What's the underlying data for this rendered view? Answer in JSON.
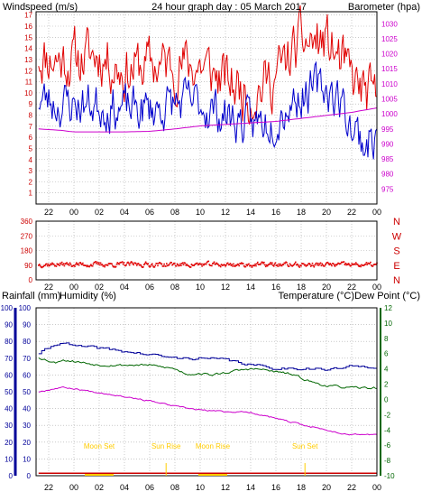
{
  "colors": {
    "background": "#ffffff",
    "frame": "#000000",
    "grid": "#a9a9a9",
    "wind": "#e00000",
    "gust": "#0000cc",
    "pressure": "#cc00cc",
    "direction": "#e00000",
    "rain": "#cc0000",
    "humidity": "#000099",
    "temperature": "#006600",
    "dew": "#cc00cc",
    "event": "#ffcc00",
    "left_axis_top": "#cc0000",
    "right_axis_top": "#cc00cc",
    "compass": "#cc0000",
    "rain_axis": "#000099",
    "humidity_axis": "#000099",
    "temp_axis": "#006600"
  },
  "chart_data": [
    {
      "type": "line",
      "title": "24 hour graph day : 05 March 2017",
      "ylabel_left": "Windspeed (m/s)",
      "ylabel_right": "Barometer (hpa)",
      "x_ticks": [
        "22",
        "00",
        "02",
        "04",
        "06",
        "08",
        "10",
        "12",
        "14",
        "16",
        "18",
        "20",
        "22",
        "00"
      ],
      "xlim": [
        -3,
        24
      ],
      "ylim_left": [
        0,
        17.3
      ],
      "ylim_right": [
        970,
        1034
      ],
      "y_ticks_left": [
        1,
        2,
        3,
        4,
        5,
        6,
        7,
        8,
        9,
        10,
        11,
        12,
        13,
        14,
        15,
        16,
        17
      ],
      "y_ticks_right": [
        975,
        980,
        985,
        990,
        995,
        1000,
        1005,
        1010,
        1015,
        1020,
        1025,
        1030
      ],
      "grid": true,
      "series_profiles": [
        {
          "axis": "left",
          "color_key": "wind",
          "seed": 11,
          "noise": 2.1,
          "x": [
            -2.8,
            -1,
            0,
            2,
            4,
            6,
            8,
            10,
            12,
            14,
            16,
            18,
            20,
            21,
            22,
            23,
            24
          ],
          "y": [
            13.5,
            13,
            13,
            13.5,
            12,
            12.5,
            12.5,
            12.5,
            11,
            10,
            11.5,
            14.5,
            14.5,
            13,
            11,
            10,
            9
          ]
        },
        {
          "axis": "left",
          "color_key": "gust",
          "seed": 23,
          "noise": 1.7,
          "x": [
            -2.8,
            -1,
            0,
            2,
            4,
            6,
            8,
            10,
            12,
            14,
            16,
            18,
            20,
            21,
            22,
            23,
            24
          ],
          "y": [
            9.5,
            9,
            9,
            9,
            8.5,
            8.5,
            9,
            9,
            8,
            7,
            8,
            10,
            10.5,
            9.5,
            7,
            5.5,
            6
          ]
        },
        {
          "axis": "right",
          "color_key": "pressure",
          "seed": 0,
          "noise": 0,
          "x": [
            -2.8,
            -1,
            0,
            2,
            4,
            6,
            8,
            10,
            12,
            14,
            16,
            18,
            20,
            22,
            24
          ],
          "y": [
            995,
            994.5,
            994,
            994,
            994,
            994.2,
            995,
            996,
            996.5,
            997,
            997.5,
            998.5,
            999.5,
            1000.5,
            1002
          ]
        }
      ]
    },
    {
      "type": "scatter",
      "ylabel_right": [
        "N",
        "W",
        "S",
        "E",
        "N"
      ],
      "x_ticks": [
        "22",
        "00",
        "02",
        "04",
        "06",
        "08",
        "10",
        "12",
        "14",
        "16",
        "18",
        "20",
        "22",
        "00"
      ],
      "xlim": [
        -3,
        24
      ],
      "ylim": [
        0,
        360
      ],
      "y_ticks": [
        0,
        90,
        180,
        270,
        360
      ],
      "grid": true,
      "series_profiles": [
        {
          "color_key": "direction",
          "seed": 37,
          "noise": 12,
          "x": [
            -2.8,
            24
          ],
          "y": [
            95,
            92
          ]
        }
      ]
    },
    {
      "type": "line",
      "labels": {
        "rain": "Rainfall (mm)",
        "humidity": "Humidity (%)",
        "temperature": "Temperature (°C)",
        "dew": "Dew Point (°C)"
      },
      "x_ticks": [
        "22",
        "00",
        "02",
        "04",
        "06",
        "08",
        "10",
        "12",
        "14",
        "16",
        "18",
        "20",
        "22",
        "00"
      ],
      "xlim": [
        -3,
        24
      ],
      "ylim_rain": [
        0,
        100
      ],
      "ylim_humidity": [
        0,
        100
      ],
      "ylim_temp": [
        -10,
        12
      ],
      "y_ticks_rain": [
        0,
        10,
        20,
        30,
        40,
        50,
        60,
        70,
        80,
        90,
        100
      ],
      "y_ticks_temp": [
        -10,
        -8,
        -6,
        -4,
        -2,
        0,
        2,
        4,
        6,
        8,
        10,
        12
      ],
      "grid": true,
      "series_profiles": [
        {
          "axis": "humidity",
          "color_key": "humidity",
          "seed": 41,
          "noise": 0.7,
          "step": true,
          "x": [
            -2.8,
            -1.5,
            -1,
            0,
            2,
            4,
            6,
            8,
            10,
            12,
            14,
            16,
            18,
            19,
            20,
            21,
            22,
            24
          ],
          "y": [
            73,
            78,
            80,
            77,
            76,
            74,
            72,
            70,
            70,
            69,
            66,
            64,
            64,
            64,
            63,
            64,
            65,
            65
          ]
        },
        {
          "axis": "temp",
          "color_key": "temperature",
          "seed": 53,
          "noise": 0.12,
          "x": [
            -2.8,
            -1.5,
            -1,
            0,
            2,
            4,
            6,
            8,
            9,
            10,
            11,
            12,
            13,
            14,
            15,
            16,
            17,
            18,
            19,
            20,
            22,
            24
          ],
          "y": [
            5.5,
            4.8,
            5.2,
            5,
            4.5,
            4.5,
            4.5,
            4,
            3.3,
            3.4,
            3.2,
            3.5,
            3.8,
            4,
            3.9,
            3.6,
            3.4,
            2.8,
            2.2,
            1.8,
            1.5,
            1.5
          ]
        },
        {
          "axis": "temp",
          "color_key": "dew",
          "seed": 67,
          "noise": 0.08,
          "x": [
            -2.8,
            -1,
            0,
            2,
            4,
            6,
            8,
            10,
            12,
            14,
            16,
            18,
            20,
            21,
            22,
            24
          ],
          "y": [
            1,
            1.6,
            1.4,
            0.9,
            0.4,
            -0.2,
            -0.9,
            -1.4,
            -1.6,
            -1.7,
            -2.5,
            -3.3,
            -4,
            -4.4,
            -4.6,
            -4.6
          ]
        },
        {
          "axis": "rain",
          "color_key": "rain",
          "seed": 0,
          "noise": 0,
          "step": true,
          "x": [
            -2.8,
            24
          ],
          "y": [
            1.5,
            1.5
          ]
        }
      ],
      "events": [
        {
          "label": "Moon Set",
          "x": 2,
          "marker": "bar"
        },
        {
          "label": "Sun Rise",
          "x": 7.3,
          "marker": "tick"
        },
        {
          "label": "Moon Rise",
          "x": 11,
          "marker": "bar"
        },
        {
          "label": "Sun Set",
          "x": 18.3,
          "marker": "tick"
        }
      ]
    }
  ]
}
